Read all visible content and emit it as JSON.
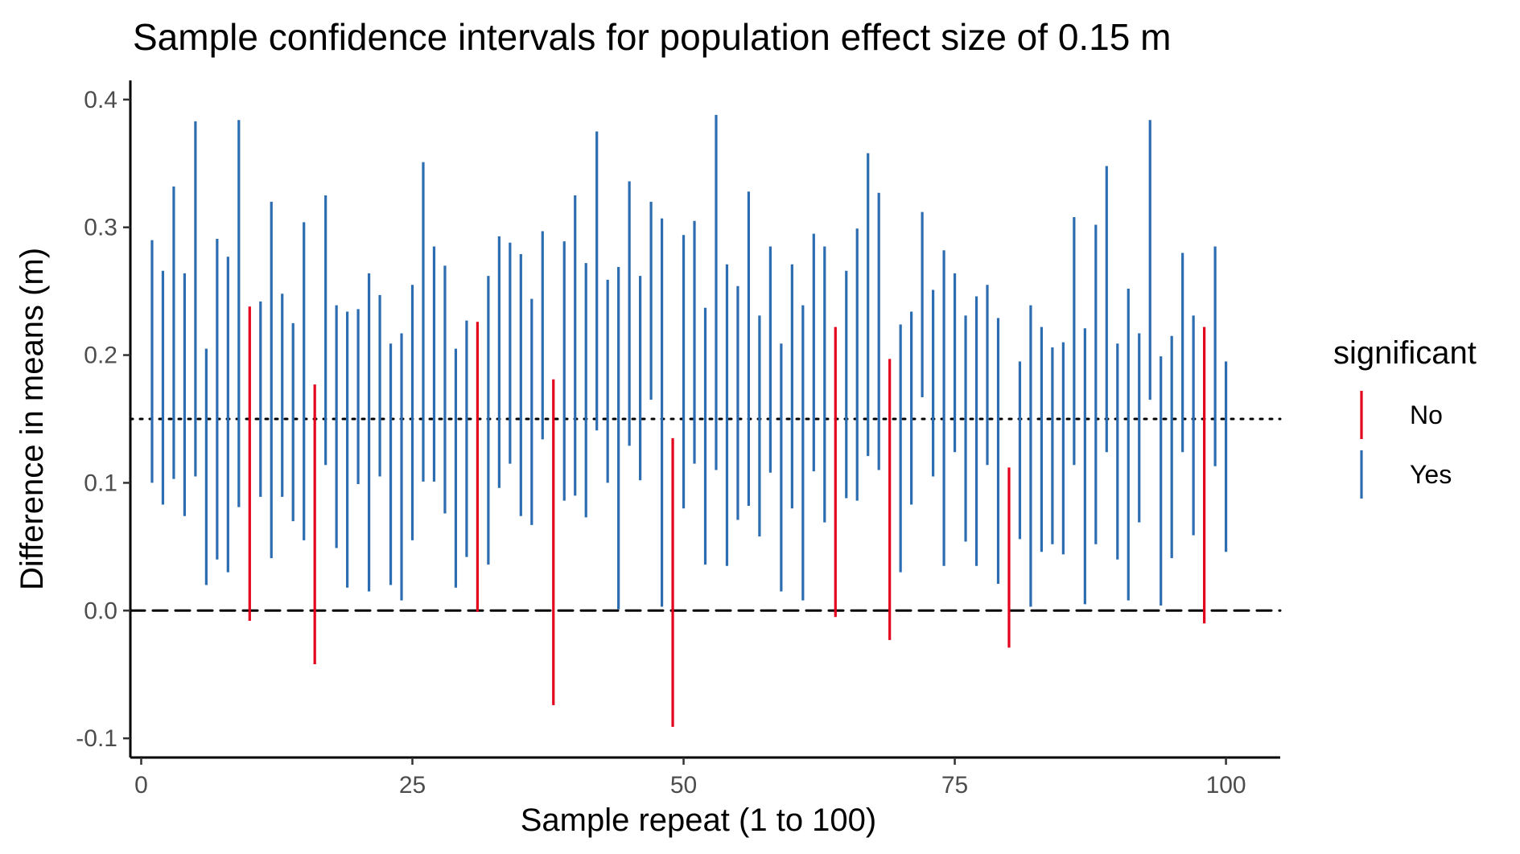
{
  "chart_data": {
    "type": "errorbar",
    "title": "Sample confidence intervals for population effect size of 0.15 m",
    "xlabel": "Sample repeat (1 to 100)",
    "ylabel": "Difference in means (m)",
    "xlim": [
      -1,
      105
    ],
    "ylim": [
      -0.115,
      0.415
    ],
    "x_ticks": [
      0,
      25,
      50,
      75,
      100
    ],
    "x_tick_labels": [
      "0",
      "25",
      "50",
      "75",
      "100"
    ],
    "y_ticks": [
      -0.1,
      0.0,
      0.1,
      0.2,
      0.3,
      0.4
    ],
    "y_tick_labels": [
      "-0.1",
      "0.0",
      "0.1",
      "0.2",
      "0.3",
      "0.4"
    ],
    "reference_lines": [
      {
        "y": 0.15,
        "style": "dotted",
        "color": "#000000"
      },
      {
        "y": 0.0,
        "style": "dashed",
        "color": "#000000"
      }
    ],
    "legend": {
      "title": "significant",
      "position": "right",
      "entries": [
        {
          "label": "No",
          "color": "#e3001b"
        },
        {
          "label": "Yes",
          "color": "#2b6db0"
        }
      ]
    },
    "intervals": [
      {
        "x": 1,
        "lower": 0.1,
        "upper": 0.29,
        "significant": "Yes"
      },
      {
        "x": 2,
        "lower": 0.083,
        "upper": 0.266,
        "significant": "Yes"
      },
      {
        "x": 3,
        "lower": 0.103,
        "upper": 0.332,
        "significant": "Yes"
      },
      {
        "x": 4,
        "lower": 0.074,
        "upper": 0.264,
        "significant": "Yes"
      },
      {
        "x": 5,
        "lower": 0.105,
        "upper": 0.383,
        "significant": "Yes"
      },
      {
        "x": 6,
        "lower": 0.02,
        "upper": 0.205,
        "significant": "Yes"
      },
      {
        "x": 7,
        "lower": 0.04,
        "upper": 0.291,
        "significant": "Yes"
      },
      {
        "x": 8,
        "lower": 0.03,
        "upper": 0.277,
        "significant": "Yes"
      },
      {
        "x": 9,
        "lower": 0.081,
        "upper": 0.384,
        "significant": "Yes"
      },
      {
        "x": 10,
        "lower": -0.008,
        "upper": 0.238,
        "significant": "No"
      },
      {
        "x": 11,
        "lower": 0.089,
        "upper": 0.242,
        "significant": "Yes"
      },
      {
        "x": 12,
        "lower": 0.041,
        "upper": 0.32,
        "significant": "Yes"
      },
      {
        "x": 13,
        "lower": 0.089,
        "upper": 0.248,
        "significant": "Yes"
      },
      {
        "x": 14,
        "lower": 0.07,
        "upper": 0.225,
        "significant": "Yes"
      },
      {
        "x": 15,
        "lower": 0.055,
        "upper": 0.304,
        "significant": "Yes"
      },
      {
        "x": 16,
        "lower": -0.042,
        "upper": 0.177,
        "significant": "No"
      },
      {
        "x": 17,
        "lower": 0.114,
        "upper": 0.325,
        "significant": "Yes"
      },
      {
        "x": 18,
        "lower": 0.049,
        "upper": 0.239,
        "significant": "Yes"
      },
      {
        "x": 19,
        "lower": 0.018,
        "upper": 0.234,
        "significant": "Yes"
      },
      {
        "x": 20,
        "lower": 0.099,
        "upper": 0.236,
        "significant": "Yes"
      },
      {
        "x": 21,
        "lower": 0.015,
        "upper": 0.264,
        "significant": "Yes"
      },
      {
        "x": 22,
        "lower": 0.105,
        "upper": 0.247,
        "significant": "Yes"
      },
      {
        "x": 23,
        "lower": 0.02,
        "upper": 0.209,
        "significant": "Yes"
      },
      {
        "x": 24,
        "lower": 0.008,
        "upper": 0.217,
        "significant": "Yes"
      },
      {
        "x": 25,
        "lower": 0.055,
        "upper": 0.255,
        "significant": "Yes"
      },
      {
        "x": 26,
        "lower": 0.101,
        "upper": 0.351,
        "significant": "Yes"
      },
      {
        "x": 27,
        "lower": 0.101,
        "upper": 0.285,
        "significant": "Yes"
      },
      {
        "x": 28,
        "lower": 0.076,
        "upper": 0.27,
        "significant": "Yes"
      },
      {
        "x": 29,
        "lower": 0.018,
        "upper": 0.205,
        "significant": "Yes"
      },
      {
        "x": 30,
        "lower": 0.042,
        "upper": 0.227,
        "significant": "Yes"
      },
      {
        "x": 31,
        "lower": -0.001,
        "upper": 0.226,
        "significant": "No"
      },
      {
        "x": 32,
        "lower": 0.036,
        "upper": 0.262,
        "significant": "Yes"
      },
      {
        "x": 33,
        "lower": 0.096,
        "upper": 0.293,
        "significant": "Yes"
      },
      {
        "x": 34,
        "lower": 0.115,
        "upper": 0.288,
        "significant": "Yes"
      },
      {
        "x": 35,
        "lower": 0.074,
        "upper": 0.279,
        "significant": "Yes"
      },
      {
        "x": 36,
        "lower": 0.067,
        "upper": 0.244,
        "significant": "Yes"
      },
      {
        "x": 37,
        "lower": 0.134,
        "upper": 0.297,
        "significant": "Yes"
      },
      {
        "x": 38,
        "lower": -0.074,
        "upper": 0.181,
        "significant": "No"
      },
      {
        "x": 39,
        "lower": 0.086,
        "upper": 0.289,
        "significant": "Yes"
      },
      {
        "x": 40,
        "lower": 0.09,
        "upper": 0.325,
        "significant": "Yes"
      },
      {
        "x": 41,
        "lower": 0.073,
        "upper": 0.272,
        "significant": "Yes"
      },
      {
        "x": 42,
        "lower": 0.141,
        "upper": 0.375,
        "significant": "Yes"
      },
      {
        "x": 43,
        "lower": 0.1,
        "upper": 0.259,
        "significant": "Yes"
      },
      {
        "x": 44,
        "lower": 0.001,
        "upper": 0.269,
        "significant": "Yes"
      },
      {
        "x": 45,
        "lower": 0.129,
        "upper": 0.336,
        "significant": "Yes"
      },
      {
        "x": 46,
        "lower": 0.102,
        "upper": 0.262,
        "significant": "Yes"
      },
      {
        "x": 47,
        "lower": 0.165,
        "upper": 0.32,
        "significant": "Yes"
      },
      {
        "x": 48,
        "lower": 0.003,
        "upper": 0.307,
        "significant": "Yes"
      },
      {
        "x": 49,
        "lower": -0.091,
        "upper": 0.135,
        "significant": "No"
      },
      {
        "x": 50,
        "lower": 0.08,
        "upper": 0.294,
        "significant": "Yes"
      },
      {
        "x": 51,
        "lower": 0.115,
        "upper": 0.305,
        "significant": "Yes"
      },
      {
        "x": 52,
        "lower": 0.036,
        "upper": 0.237,
        "significant": "Yes"
      },
      {
        "x": 53,
        "lower": 0.11,
        "upper": 0.388,
        "significant": "Yes"
      },
      {
        "x": 54,
        "lower": 0.035,
        "upper": 0.271,
        "significant": "Yes"
      },
      {
        "x": 55,
        "lower": 0.071,
        "upper": 0.254,
        "significant": "Yes"
      },
      {
        "x": 56,
        "lower": 0.082,
        "upper": 0.328,
        "significant": "Yes"
      },
      {
        "x": 57,
        "lower": 0.058,
        "upper": 0.231,
        "significant": "Yes"
      },
      {
        "x": 58,
        "lower": 0.108,
        "upper": 0.285,
        "significant": "Yes"
      },
      {
        "x": 59,
        "lower": 0.015,
        "upper": 0.209,
        "significant": "Yes"
      },
      {
        "x": 60,
        "lower": 0.08,
        "upper": 0.271,
        "significant": "Yes"
      },
      {
        "x": 61,
        "lower": 0.008,
        "upper": 0.239,
        "significant": "Yes"
      },
      {
        "x": 62,
        "lower": 0.109,
        "upper": 0.295,
        "significant": "Yes"
      },
      {
        "x": 63,
        "lower": 0.069,
        "upper": 0.285,
        "significant": "Yes"
      },
      {
        "x": 64,
        "lower": -0.005,
        "upper": 0.222,
        "significant": "No"
      },
      {
        "x": 65,
        "lower": 0.088,
        "upper": 0.266,
        "significant": "Yes"
      },
      {
        "x": 66,
        "lower": 0.086,
        "upper": 0.299,
        "significant": "Yes"
      },
      {
        "x": 67,
        "lower": 0.121,
        "upper": 0.358,
        "significant": "Yes"
      },
      {
        "x": 68,
        "lower": 0.11,
        "upper": 0.327,
        "significant": "Yes"
      },
      {
        "x": 69,
        "lower": -0.023,
        "upper": 0.197,
        "significant": "No"
      },
      {
        "x": 70,
        "lower": 0.03,
        "upper": 0.224,
        "significant": "Yes"
      },
      {
        "x": 71,
        "lower": 0.083,
        "upper": 0.234,
        "significant": "Yes"
      },
      {
        "x": 72,
        "lower": 0.167,
        "upper": 0.312,
        "significant": "Yes"
      },
      {
        "x": 73,
        "lower": 0.105,
        "upper": 0.251,
        "significant": "Yes"
      },
      {
        "x": 74,
        "lower": 0.035,
        "upper": 0.282,
        "significant": "Yes"
      },
      {
        "x": 75,
        "lower": 0.124,
        "upper": 0.264,
        "significant": "Yes"
      },
      {
        "x": 76,
        "lower": 0.054,
        "upper": 0.231,
        "significant": "Yes"
      },
      {
        "x": 77,
        "lower": 0.035,
        "upper": 0.246,
        "significant": "Yes"
      },
      {
        "x": 78,
        "lower": 0.114,
        "upper": 0.255,
        "significant": "Yes"
      },
      {
        "x": 79,
        "lower": 0.021,
        "upper": 0.229,
        "significant": "Yes"
      },
      {
        "x": 80,
        "lower": -0.029,
        "upper": 0.112,
        "significant": "No"
      },
      {
        "x": 81,
        "lower": 0.056,
        "upper": 0.195,
        "significant": "Yes"
      },
      {
        "x": 82,
        "lower": 0.003,
        "upper": 0.239,
        "significant": "Yes"
      },
      {
        "x": 83,
        "lower": 0.046,
        "upper": 0.222,
        "significant": "Yes"
      },
      {
        "x": 84,
        "lower": 0.052,
        "upper": 0.206,
        "significant": "Yes"
      },
      {
        "x": 85,
        "lower": 0.044,
        "upper": 0.21,
        "significant": "Yes"
      },
      {
        "x": 86,
        "lower": 0.114,
        "upper": 0.308,
        "significant": "Yes"
      },
      {
        "x": 87,
        "lower": 0.005,
        "upper": 0.221,
        "significant": "Yes"
      },
      {
        "x": 88,
        "lower": 0.052,
        "upper": 0.302,
        "significant": "Yes"
      },
      {
        "x": 89,
        "lower": 0.124,
        "upper": 0.348,
        "significant": "Yes"
      },
      {
        "x": 90,
        "lower": 0.04,
        "upper": 0.209,
        "significant": "Yes"
      },
      {
        "x": 91,
        "lower": 0.008,
        "upper": 0.252,
        "significant": "Yes"
      },
      {
        "x": 92,
        "lower": 0.069,
        "upper": 0.217,
        "significant": "Yes"
      },
      {
        "x": 93,
        "lower": 0.165,
        "upper": 0.384,
        "significant": "Yes"
      },
      {
        "x": 94,
        "lower": 0.004,
        "upper": 0.199,
        "significant": "Yes"
      },
      {
        "x": 95,
        "lower": 0.041,
        "upper": 0.215,
        "significant": "Yes"
      },
      {
        "x": 96,
        "lower": 0.124,
        "upper": 0.28,
        "significant": "Yes"
      },
      {
        "x": 97,
        "lower": 0.059,
        "upper": 0.231,
        "significant": "Yes"
      },
      {
        "x": 98,
        "lower": -0.01,
        "upper": 0.222,
        "significant": "No"
      },
      {
        "x": 99,
        "lower": 0.113,
        "upper": 0.285,
        "significant": "Yes"
      },
      {
        "x": 100,
        "lower": 0.046,
        "upper": 0.195,
        "significant": "Yes"
      }
    ]
  }
}
